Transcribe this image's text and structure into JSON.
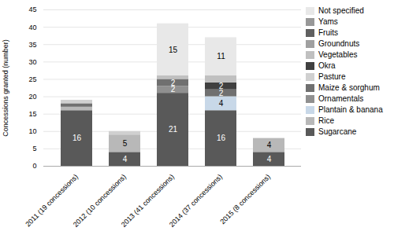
{
  "chart_data": {
    "type": "bar",
    "stacked": true,
    "categories": [
      "2011 (19 concessions)",
      "2012 (10 concessions)",
      "2013 (41 concessions)",
      "2014 (37 concessions)",
      "2015 (8 concessions)"
    ],
    "series": [
      {
        "name": "Sugarcane",
        "color": "#595959",
        "values": [
          16,
          4,
          21,
          16,
          4
        ],
        "value_labels": [
          "16",
          "4",
          "21",
          "16",
          "4"
        ]
      },
      {
        "name": "Rice",
        "color": "#b8b8b8",
        "values": [
          1,
          5,
          0,
          0,
          4
        ],
        "value_labels": [
          null,
          "5",
          null,
          null,
          "4"
        ]
      },
      {
        "name": "Plantain & banana",
        "color": "#c8d8e8",
        "values": [
          0,
          0,
          0,
          4,
          0
        ],
        "value_labels": [
          null,
          null,
          null,
          "4",
          null
        ]
      },
      {
        "name": "Ornamentals",
        "color": "#909090",
        "values": [
          0,
          0,
          2,
          0,
          0
        ],
        "value_labels": [
          null,
          null,
          "2",
          null,
          null
        ]
      },
      {
        "name": "Maize & sorghum",
        "color": "#707070",
        "values": [
          1,
          0,
          2,
          2,
          0
        ],
        "value_labels": [
          null,
          null,
          "2",
          "2",
          null
        ]
      },
      {
        "name": "Pasture",
        "color": "#d0d0d0",
        "values": [
          1,
          1,
          0,
          0,
          0
        ]
      },
      {
        "name": "Okra",
        "color": "#404040",
        "values": [
          0,
          0,
          0,
          2,
          0
        ],
        "value_labels": [
          null,
          null,
          null,
          "2",
          null
        ]
      },
      {
        "name": "Vegetables",
        "color": "#c0c0c0",
        "values": [
          0,
          0,
          1,
          2,
          0
        ]
      },
      {
        "name": "Groundnuts",
        "color": "#a0a0a0",
        "values": [
          0,
          0,
          0,
          0,
          0
        ]
      },
      {
        "name": "Fruits",
        "color": "#606060",
        "values": [
          0,
          0,
          0,
          0,
          0
        ]
      },
      {
        "name": "Yams",
        "color": "#989898",
        "values": [
          0,
          0,
          0,
          0,
          0
        ]
      },
      {
        "name": "Not specified",
        "color": "#e8e8e8",
        "values": [
          0,
          0,
          15,
          11,
          0
        ],
        "value_labels": [
          null,
          null,
          "15",
          "11",
          null
        ]
      }
    ],
    "ylabel": "Concessions granted (number)",
    "ylim": [
      0,
      45
    ],
    "yticks": [
      0,
      5,
      10,
      15,
      20,
      25,
      30,
      35,
      40,
      45
    ],
    "grid": true,
    "data_labels": true,
    "legend": "right"
  }
}
